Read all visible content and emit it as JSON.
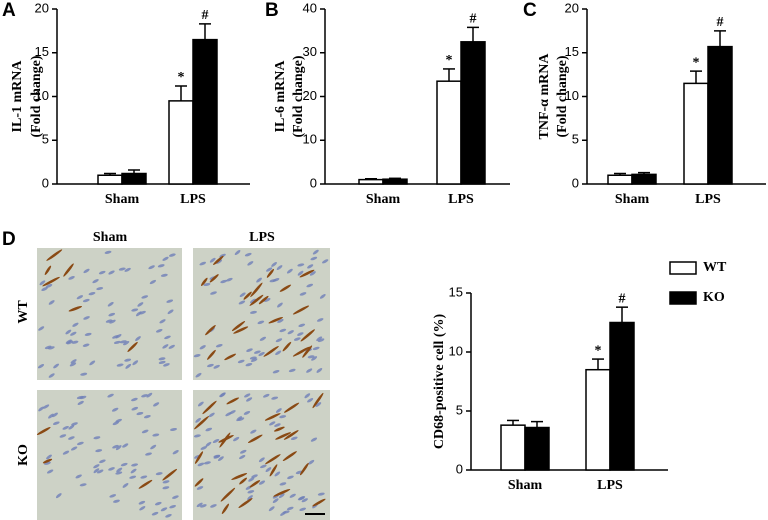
{
  "panels": [
    "A",
    "B",
    "C",
    "D"
  ],
  "micrographs": {
    "columns": [
      "Sham",
      "LPS"
    ],
    "rows": [
      "WT",
      "KO"
    ]
  },
  "chart_data": [
    {
      "type": "bar",
      "ylabel": [
        "IL-1 mRNA",
        "(Fold change)"
      ],
      "categories": [
        "Sham",
        "LPS"
      ],
      "ylim": [
        0,
        20
      ],
      "yticks": [
        0,
        5,
        10,
        15,
        20
      ],
      "series": [
        {
          "color": "#ffffff",
          "values": [
            1.0,
            9.5
          ],
          "errors": [
            0.2,
            1.7
          ],
          "significance": [
            null,
            "*"
          ]
        },
        {
          "color": "#000000",
          "values": [
            1.2,
            16.5
          ],
          "errors": [
            0.4,
            1.8
          ],
          "significance": [
            null,
            "#"
          ]
        }
      ]
    },
    {
      "type": "bar",
      "ylabel": [
        "IL-6 mRNA",
        "(Fold change)"
      ],
      "categories": [
        "Sham",
        "LPS"
      ],
      "ylim": [
        0,
        40
      ],
      "yticks": [
        0,
        10,
        20,
        30,
        40
      ],
      "series": [
        {
          "color": "#ffffff",
          "values": [
            1.0,
            23.5
          ],
          "errors": [
            0.2,
            2.8
          ],
          "significance": [
            null,
            "*"
          ]
        },
        {
          "color": "#000000",
          "values": [
            1.1,
            32.5
          ],
          "errors": [
            0.2,
            3.3
          ],
          "significance": [
            null,
            "#"
          ]
        }
      ]
    },
    {
      "type": "bar",
      "ylabel": [
        "TNF-α mRNA",
        "(Fold change)"
      ],
      "categories": [
        "Sham",
        "LPS"
      ],
      "ylim": [
        0,
        20
      ],
      "yticks": [
        0,
        5,
        10,
        15,
        20
      ],
      "series": [
        {
          "color": "#ffffff",
          "values": [
            1.0,
            11.5
          ],
          "errors": [
            0.2,
            1.4
          ],
          "significance": [
            null,
            "*"
          ]
        },
        {
          "color": "#000000",
          "values": [
            1.1,
            15.7
          ],
          "errors": [
            0.2,
            1.8
          ],
          "significance": [
            null,
            "#"
          ]
        }
      ]
    },
    {
      "type": "bar",
      "ylabel": [
        "CD68-positive cell (%)"
      ],
      "categories": [
        "Sham",
        "LPS"
      ],
      "ylim": [
        0,
        15
      ],
      "yticks": [
        0,
        5,
        10,
        15
      ],
      "legend": "top-right",
      "series": [
        {
          "name": "WT",
          "color": "#ffffff",
          "values": [
            3.8,
            8.5
          ],
          "errors": [
            0.4,
            0.9
          ],
          "significance": [
            null,
            "*"
          ]
        },
        {
          "name": "KO",
          "color": "#000000",
          "values": [
            3.6,
            12.5
          ],
          "errors": [
            0.5,
            1.3
          ],
          "significance": [
            null,
            "#"
          ]
        }
      ]
    }
  ]
}
